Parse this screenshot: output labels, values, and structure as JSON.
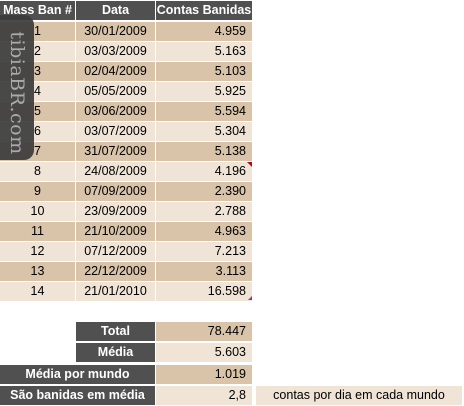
{
  "table": {
    "headers": [
      "Mass Ban #",
      "Data",
      "Contas Banidas"
    ],
    "rows": [
      {
        "n": "1",
        "date": "30/01/2009",
        "count": "4.959"
      },
      {
        "n": "2",
        "date": "03/03/2009",
        "count": "5.163"
      },
      {
        "n": "3",
        "date": "02/04/2009",
        "count": "5.103"
      },
      {
        "n": "4",
        "date": "05/05/2009",
        "count": "5.925"
      },
      {
        "n": "5",
        "date": "03/06/2009",
        "count": "5.594"
      },
      {
        "n": "6",
        "date": "03/07/2009",
        "count": "5.304"
      },
      {
        "n": "7",
        "date": "31/07/2009",
        "count": "5.138"
      },
      {
        "n": "8",
        "date": "24/08/2009",
        "count": "4.196"
      },
      {
        "n": "9",
        "date": "07/09/2009",
        "count": "2.390"
      },
      {
        "n": "10",
        "date": "23/09/2009",
        "count": "2.788"
      },
      {
        "n": "11",
        "date": "21/10/2009",
        "count": "4.963"
      },
      {
        "n": "12",
        "date": "07/12/2009",
        "count": "7.213"
      },
      {
        "n": "13",
        "date": "22/12/2009",
        "count": "3.113"
      },
      {
        "n": "14",
        "date": "21/01/2010",
        "count": "16.598"
      }
    ]
  },
  "summary": {
    "total_label": "Total",
    "total_value": "78.447",
    "media_label": "Média",
    "media_value": "5.603",
    "media_mundo_label": "Média por mundo",
    "media_mundo_value": "1.019",
    "banidas_label": "São banidas em média",
    "banidas_value": "2,8",
    "banidas_note": "contas por dia em cada mundo"
  },
  "watermark": {
    "text": "tibiaBR.com"
  },
  "colors": {
    "header": "#505050",
    "row_dark": "#d9c3a9",
    "row_light": "#efe4d6"
  }
}
